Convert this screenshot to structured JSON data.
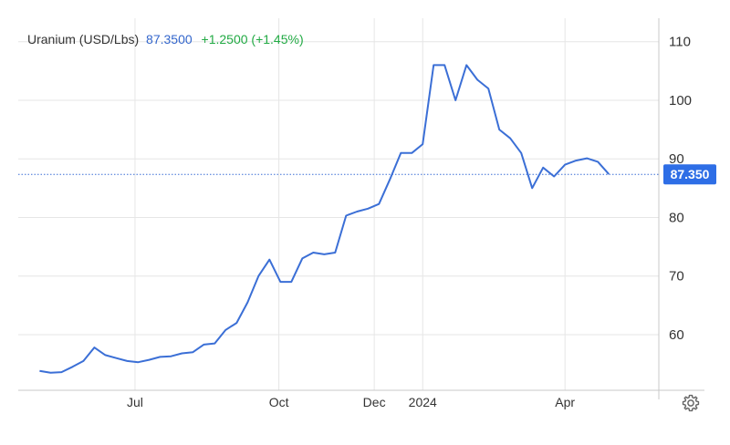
{
  "header": {
    "title": "Uranium (USD/Lbs)",
    "price": "87.3500",
    "change": "+1.2500 (+1.45%)"
  },
  "price_label": "87.350",
  "colors": {
    "line": "#3b6fd6",
    "price_label_bg": "#2e6ee6",
    "grid": "#e6e6e6",
    "axis": "#c8c8c8",
    "change_positive": "#22aa44"
  },
  "settings": {
    "icon": "gear-icon"
  },
  "chart_data": {
    "type": "line",
    "title": "Uranium (USD/Lbs)",
    "xlabel": "",
    "ylabel": "",
    "x_tick_labels": [
      "Jul",
      "Oct",
      "Dec",
      "2024",
      "Apr"
    ],
    "y_tick_labels": [
      "60",
      "70",
      "80",
      "90",
      "100",
      "110"
    ],
    "ylim": [
      50.5,
      114
    ],
    "y_axis_position": "right",
    "grid": true,
    "current_value": 87.35,
    "series": [
      {
        "name": "Uranium (USD/Lbs)",
        "x": [
          "2023-05-01",
          "2023-05-08",
          "2023-05-15",
          "2023-05-22",
          "2023-05-29",
          "2023-06-05",
          "2023-06-12",
          "2023-06-19",
          "2023-06-26",
          "2023-07-03",
          "2023-07-10",
          "2023-07-17",
          "2023-07-24",
          "2023-07-31",
          "2023-08-07",
          "2023-08-14",
          "2023-08-21",
          "2023-08-28",
          "2023-09-04",
          "2023-09-11",
          "2023-09-18",
          "2023-09-25",
          "2023-10-02",
          "2023-10-09",
          "2023-10-16",
          "2023-10-23",
          "2023-10-30",
          "2023-11-06",
          "2023-11-13",
          "2023-11-20",
          "2023-11-27",
          "2023-12-04",
          "2023-12-11",
          "2023-12-18",
          "2023-12-25",
          "2024-01-01",
          "2024-01-08",
          "2024-01-15",
          "2024-01-22",
          "2024-01-29",
          "2024-02-05",
          "2024-02-12",
          "2024-02-19",
          "2024-02-26",
          "2024-03-04",
          "2024-03-11",
          "2024-03-18",
          "2024-03-25",
          "2024-04-01",
          "2024-04-08",
          "2024-04-15",
          "2024-04-22",
          "2024-04-29"
        ],
        "values": [
          53.8,
          53.5,
          53.6,
          54.5,
          55.5,
          57.8,
          56.5,
          56.0,
          55.5,
          55.3,
          55.7,
          56.2,
          56.3,
          56.8,
          57.0,
          58.3,
          58.5,
          60.8,
          62.0,
          65.5,
          70.0,
          72.8,
          69.0,
          69.0,
          73.0,
          74.0,
          73.7,
          74.0,
          80.3,
          81.0,
          81.5,
          82.3,
          86.5,
          91.0,
          91.0,
          92.5,
          106.0,
          106.0,
          100.0,
          106.0,
          103.5,
          102.0,
          95.0,
          93.5,
          91.0,
          85.0,
          88.5,
          87.0,
          89.0,
          89.7,
          90.1,
          89.5,
          87.4
        ]
      }
    ]
  }
}
